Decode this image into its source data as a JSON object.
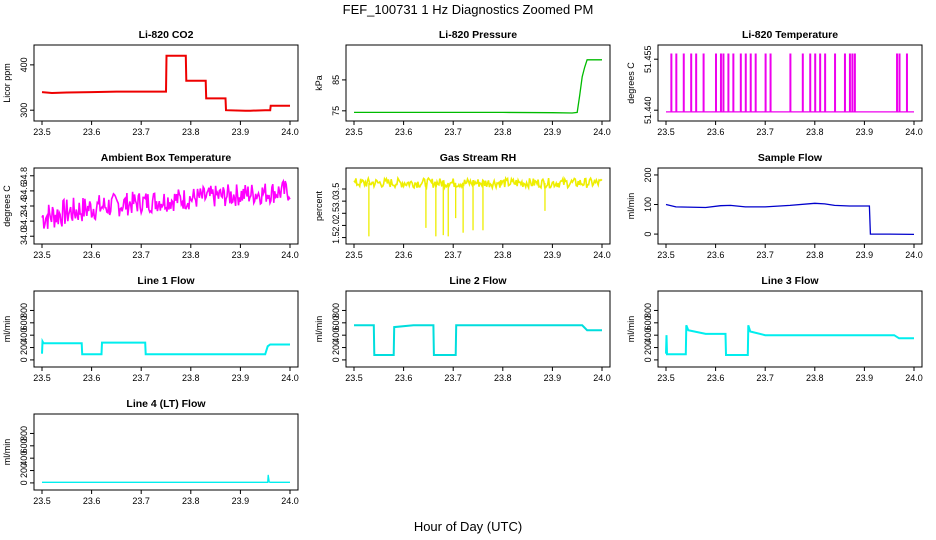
{
  "figure": {
    "title": "FEF_100731  1 Hz Diagnostics Zoomed PM",
    "xlabel": "Hour of Day (UTC)"
  },
  "chart_data": [
    {
      "id": "co2",
      "type": "line",
      "title": "Li-820 CO2",
      "ylabel": "Licor ppm",
      "color": "#ee0000",
      "xlim": [
        23.5,
        24.0
      ],
      "xticks": [
        23.5,
        23.6,
        23.7,
        23.8,
        23.9,
        24.0
      ],
      "ylim": [
        285,
        435
      ],
      "yticks": [
        300,
        400
      ],
      "x": [
        23.5,
        23.52,
        23.55,
        23.6,
        23.65,
        23.7,
        23.75,
        23.751,
        23.79,
        23.791,
        23.83,
        23.831,
        23.87,
        23.871,
        23.91,
        23.92,
        23.95,
        23.96,
        23.961,
        23.98,
        24.0
      ],
      "y": [
        340,
        338,
        339,
        340,
        341,
        341,
        341,
        420,
        420,
        365,
        365,
        326,
        326,
        300,
        299,
        299,
        300,
        300,
        310,
        310,
        310
      ]
    },
    {
      "id": "pressure",
      "type": "line",
      "title": "Li-820 Pressure",
      "ylabel": "kPa",
      "color": "#00bb00",
      "xlim": [
        23.5,
        24.0
      ],
      "xticks": [
        23.5,
        23.6,
        23.7,
        23.8,
        23.9,
        24.0
      ],
      "ylim": [
        73,
        95
      ],
      "yticks": [
        75,
        85
      ],
      "x": [
        23.5,
        23.6,
        23.7,
        23.8,
        23.9,
        23.94,
        23.95,
        23.955,
        23.96,
        23.965,
        23.97,
        23.98,
        24.0
      ],
      "y": [
        74.5,
        74.5,
        74.5,
        74.5,
        74.4,
        74.3,
        74.5,
        80,
        86,
        89,
        91.5,
        91.5,
        91.5
      ]
    },
    {
      "id": "temperature",
      "type": "line",
      "title": "Li-820 Temperature",
      "ylabel": "degrees C",
      "color": "#ee00ee",
      "xlim": [
        23.5,
        24.0
      ],
      "xticks": [
        23.5,
        23.6,
        23.7,
        23.8,
        23.9,
        24.0
      ],
      "ylim": [
        51.438,
        51.458
      ],
      "yticks": [
        51.44,
        51.455
      ],
      "spikes": [
        23.51,
        23.52,
        23.535,
        23.55,
        23.56,
        23.575,
        23.6,
        23.61,
        23.615,
        23.625,
        23.635,
        23.65,
        23.66,
        23.67,
        23.68,
        23.7,
        23.71,
        23.75,
        23.775,
        23.79,
        23.8,
        23.81,
        23.82,
        23.84,
        23.86,
        23.87,
        23.875,
        23.88,
        23.965,
        23.97,
        23.985
      ],
      "low": 51.4395,
      "high": 51.4565
    },
    {
      "id": "ambient",
      "type": "noise",
      "title": "Ambient Box Temperature",
      "ylabel": "degrees C",
      "color": "#ff00ff",
      "xlim": [
        23.5,
        24.0
      ],
      "xticks": [
        23.5,
        23.6,
        23.7,
        23.8,
        23.9,
        24.0
      ],
      "ylim": [
        33.95,
        34.85
      ],
      "yticks": [
        34.0,
        34.2,
        34.4,
        34.6,
        34.8
      ],
      "base_x": [
        23.5,
        23.6,
        23.7,
        23.8,
        23.9,
        24.0
      ],
      "band_lo": [
        34.05,
        34.2,
        34.3,
        34.35,
        34.4,
        34.45
      ],
      "band_hi": [
        34.45,
        34.55,
        34.6,
        34.65,
        34.7,
        34.75
      ]
    },
    {
      "id": "rh",
      "type": "noise",
      "title": "Gas Stream RH",
      "ylabel": "percent",
      "color": "#eeee00",
      "xlim": [
        23.5,
        24.0
      ],
      "xticks": [
        23.5,
        23.6,
        23.7,
        23.8,
        23.9,
        24.0
      ],
      "ylim": [
        1.4,
        4.2
      ],
      "yticks": [
        1.5,
        2.0,
        2.5,
        3.0,
        3.5
      ],
      "base_x": [
        23.5,
        24.0
      ],
      "band_lo": [
        3.55,
        3.55
      ],
      "band_hi": [
        3.95,
        3.95
      ],
      "dips_x": [
        23.53,
        23.645,
        23.665,
        23.68,
        23.69,
        23.705,
        23.72,
        23.74,
        23.76,
        23.885
      ],
      "dips_y": [
        1.55,
        1.9,
        1.55,
        1.6,
        1.55,
        2.3,
        1.7,
        1.8,
        1.8,
        2.6
      ]
    },
    {
      "id": "sample_flow",
      "type": "line",
      "title": "Sample Flow",
      "ylabel": "ml/min",
      "color": "#0000cc",
      "xlim": [
        23.5,
        24.0
      ],
      "xticks": [
        23.5,
        23.6,
        23.7,
        23.8,
        23.9,
        24.0
      ],
      "ylim": [
        -20,
        210
      ],
      "yticks": [
        0,
        100,
        200
      ],
      "x": [
        23.5,
        23.52,
        23.58,
        23.61,
        23.63,
        23.66,
        23.7,
        23.75,
        23.8,
        23.82,
        23.84,
        23.87,
        23.91,
        23.912,
        23.95,
        24.0
      ],
      "y": [
        100,
        92,
        90,
        96,
        97,
        92,
        92,
        97,
        104,
        102,
        97,
        95,
        95,
        0,
        0,
        -1
      ]
    },
    {
      "id": "line1",
      "type": "line",
      "title": "Line 1 Flow",
      "ylabel": "ml/min",
      "color": "#00eeee",
      "xlim": [
        23.5,
        24.0
      ],
      "xticks": [
        23.5,
        23.6,
        23.7,
        23.8,
        23.9,
        24.0
      ],
      "ylim": [
        -50,
        1050
      ],
      "yticks": [
        0,
        200,
        400,
        600,
        800
      ],
      "x": [
        23.5,
        23.501,
        23.503,
        23.58,
        23.581,
        23.62,
        23.621,
        23.708,
        23.709,
        23.8,
        23.95,
        23.955,
        23.96,
        24.0
      ],
      "y": [
        100,
        300,
        270,
        270,
        90,
        90,
        280,
        280,
        90,
        90,
        90,
        220,
        250,
        250
      ]
    },
    {
      "id": "line2",
      "type": "line",
      "title": "Line 2 Flow",
      "ylabel": "ml/min",
      "color": "#00dddd",
      "xlim": [
        23.5,
        24.0
      ],
      "xticks": [
        23.5,
        23.6,
        23.7,
        23.8,
        23.9,
        24.0
      ],
      "ylim": [
        -50,
        1050
      ],
      "yticks": [
        0,
        200,
        400,
        600,
        800
      ],
      "x": [
        23.5,
        23.54,
        23.541,
        23.58,
        23.581,
        23.62,
        23.66,
        23.661,
        23.705,
        23.706,
        23.8,
        23.96,
        23.97,
        24.0
      ],
      "y": [
        560,
        560,
        80,
        80,
        530,
        560,
        560,
        80,
        80,
        560,
        560,
        560,
        480,
        480
      ]
    },
    {
      "id": "line3",
      "type": "line",
      "title": "Line 3 Flow",
      "ylabel": "ml/min",
      "color": "#00eeee",
      "xlim": [
        23.5,
        24.0
      ],
      "xticks": [
        23.5,
        23.6,
        23.7,
        23.8,
        23.9,
        24.0
      ],
      "ylim": [
        -50,
        1050
      ],
      "yticks": [
        0,
        200,
        400,
        600,
        800
      ],
      "x": [
        23.5,
        23.501,
        23.502,
        23.54,
        23.541,
        23.545,
        23.58,
        23.62,
        23.621,
        23.665,
        23.666,
        23.67,
        23.7,
        23.8,
        23.96,
        23.97,
        24.0
      ],
      "y": [
        100,
        400,
        90,
        90,
        560,
        480,
        420,
        420,
        80,
        80,
        560,
        460,
        400,
        400,
        400,
        350,
        350
      ]
    },
    {
      "id": "line4",
      "type": "line",
      "title": "Line 4 (LT) Flow",
      "ylabel": "ml/min",
      "color": "#00eeee",
      "xlim": [
        23.5,
        24.0
      ],
      "xticks": [
        23.5,
        23.6,
        23.7,
        23.8,
        23.9,
        24.0
      ],
      "ylim": [
        -50,
        1050
      ],
      "yticks": [
        0,
        200,
        400,
        600,
        800
      ],
      "x": [
        23.5,
        23.6,
        23.7,
        23.8,
        23.9,
        23.955,
        23.956,
        23.958,
        23.96,
        24.0
      ],
      "y": [
        10,
        10,
        10,
        10,
        10,
        10,
        130,
        15,
        10,
        10
      ]
    }
  ]
}
